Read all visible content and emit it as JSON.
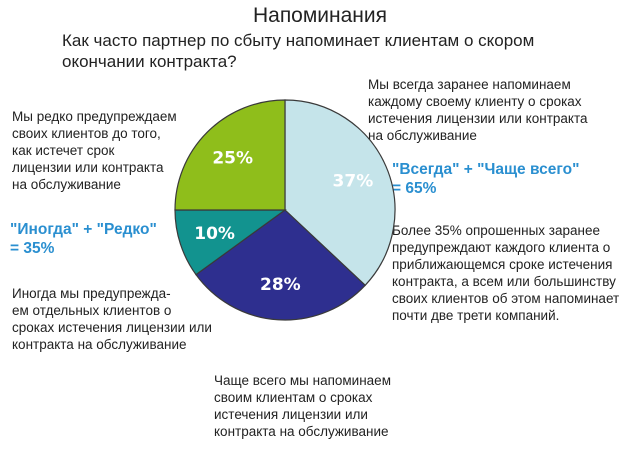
{
  "title": "Напоминания",
  "subtitle": "Как часто партнер по сбыту напоминает клиентам о скором\nокончании контракта?",
  "notes": {
    "always": "Мы всегда заранее напоминаем\nкаждому своему клиенту о сроках\n истечения лицензии или контракта\nна обслуживание",
    "rarely": "Мы редко предупреждаем\nсвоих клиентов до того,\n как истечет срок\nлицензии или контракта\n на обслуживание",
    "sometimes": "Иногда мы предупрежда-\nем отдельных клиентов о\nсроках истечения лицензии или\nконтракта на обслуживание",
    "often": "Чаще всего мы напоминаем\nсвоим клиентам о сроках\n истечения лицензии или\n контракта на обслуживание",
    "summary": "Более 35% опрошенных заранее\nпредупреждают каждого клиента о\nприближающемся сроке истечения\nконтракта, а всем или большинству\nсвоих клиентов об этом напоминает\nпочти две трети компаний."
  },
  "highlights": {
    "always_often": "\"Всегда\" + \"Чаще всего\"\n= 65%",
    "sometimes_rarely": "\"Иногда\" + \"Редко\"\n= 35%"
  },
  "chart_data": {
    "type": "pie",
    "slices": [
      {
        "label": "37%",
        "value": 37,
        "color": "#c5e4ea"
      },
      {
        "label": "28%",
        "value": 28,
        "color": "#2e2f8f"
      },
      {
        "label": "10%",
        "value": 10,
        "color": "#12938f"
      },
      {
        "label": "25%",
        "value": 25,
        "color": "#8fbe1b"
      }
    ],
    "start_angle_deg": 0,
    "direction": "clockwise"
  }
}
